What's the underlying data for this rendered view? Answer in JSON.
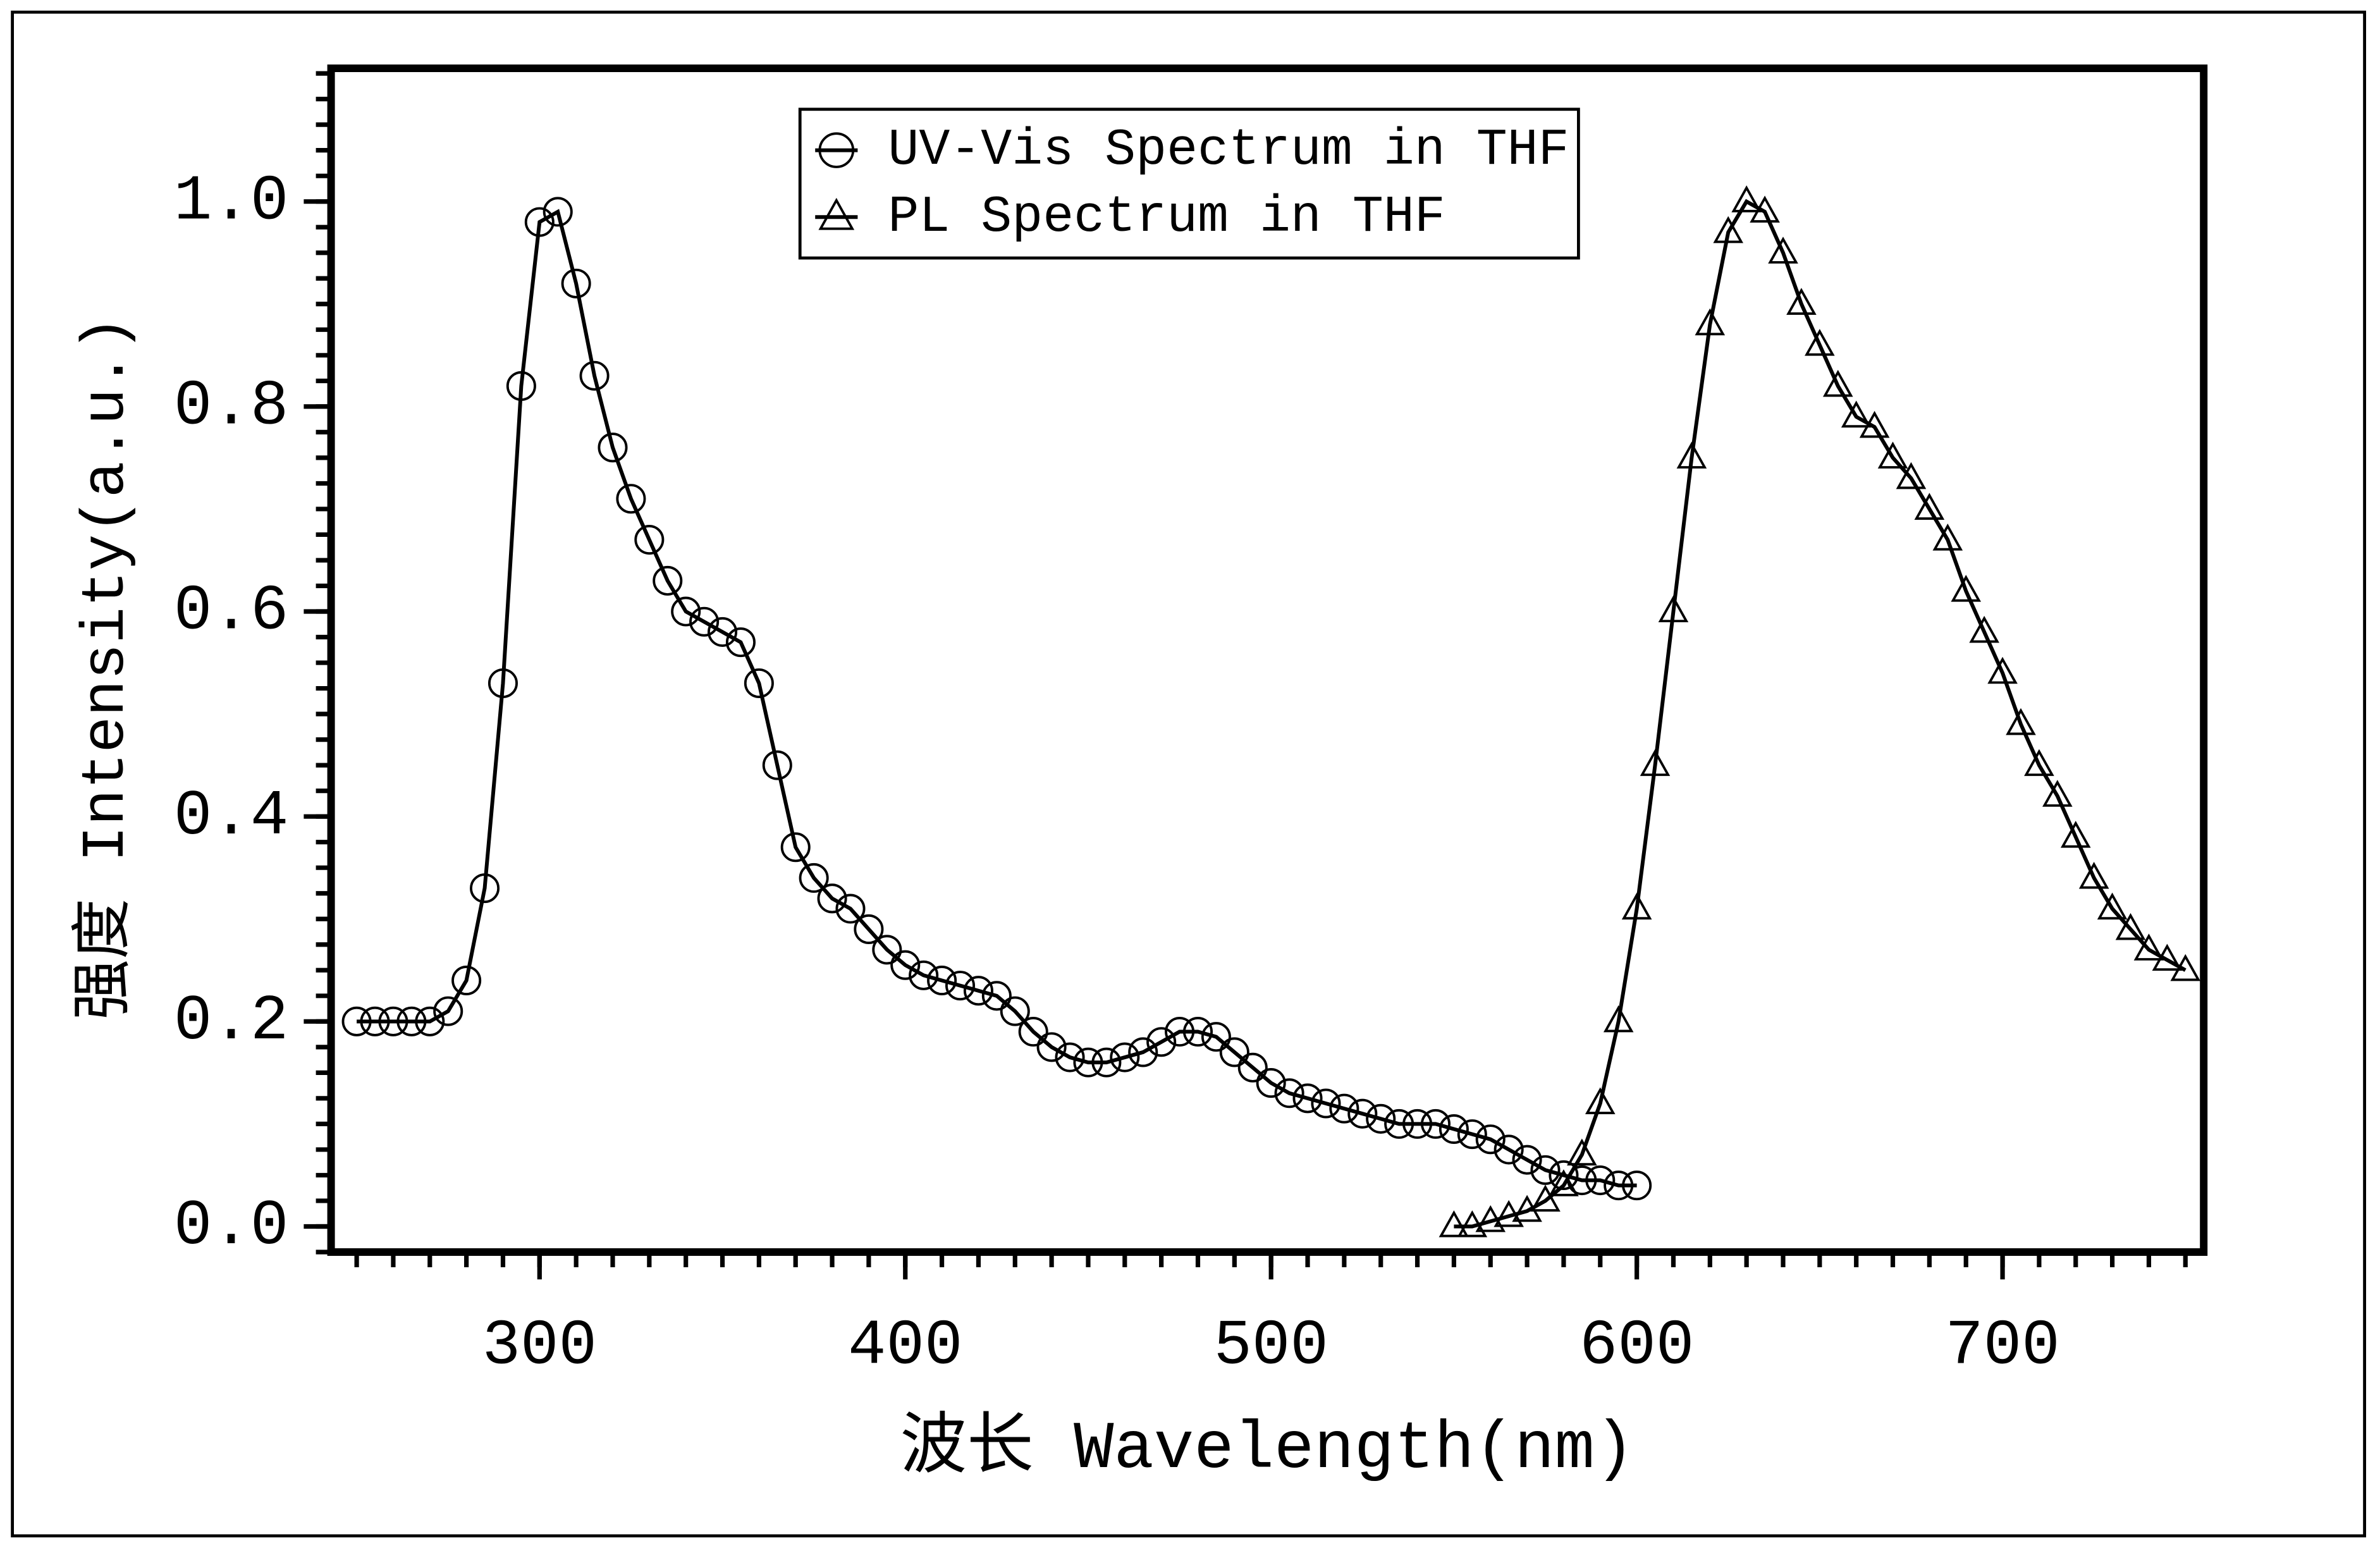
{
  "chart_data": {
    "type": "line",
    "xlabel": "波长 Wavelength(nm)",
    "ylabel": "强度 Intensity(a.u.)",
    "xlim": [
      243,
      755
    ],
    "xticks": [
      300,
      400,
      500,
      600,
      700
    ],
    "ylim": [
      -0.025,
      1.13
    ],
    "yticks": [
      {
        "value": 0,
        "label": "0.0"
      },
      0.2,
      0.4,
      0.6,
      0.8,
      {
        "value": 1,
        "label": "1.0"
      }
    ],
    "legend": "upper center",
    "series": [
      {
        "name": "UV-Vis Spectrum in THF",
        "color": "#000000",
        "marker": "circle",
        "x": [
          250,
          255,
          260,
          265,
          270,
          275,
          280,
          285,
          290,
          295,
          300,
          305,
          310,
          315,
          320,
          325,
          330,
          335,
          340,
          345,
          350,
          355,
          360,
          365,
          370,
          375,
          380,
          385,
          390,
          395,
          400,
          405,
          410,
          415,
          420,
          425,
          430,
          435,
          440,
          445,
          450,
          455,
          460,
          465,
          470,
          475,
          480,
          485,
          490,
          495,
          500,
          505,
          510,
          515,
          520,
          525,
          530,
          535,
          540,
          545,
          550,
          555,
          560,
          565,
          570,
          575,
          580,
          585,
          590,
          595,
          600
        ],
        "values": [
          0.2,
          0.2,
          0.2,
          0.2,
          0.2,
          0.21,
          0.24,
          0.33,
          0.53,
          0.82,
          0.98,
          0.99,
          0.92,
          0.83,
          0.76,
          0.71,
          0.67,
          0.63,
          0.6,
          0.59,
          0.58,
          0.57,
          0.53,
          0.45,
          0.37,
          0.34,
          0.32,
          0.31,
          0.29,
          0.27,
          0.255,
          0.245,
          0.24,
          0.235,
          0.23,
          0.225,
          0.21,
          0.19,
          0.175,
          0.165,
          0.16,
          0.16,
          0.165,
          0.17,
          0.18,
          0.19,
          0.19,
          0.185,
          0.17,
          0.155,
          0.14,
          0.13,
          0.125,
          0.12,
          0.115,
          0.11,
          0.105,
          0.1,
          0.1,
          0.1,
          0.095,
          0.09,
          0.085,
          0.075,
          0.065,
          0.055,
          0.05,
          0.045,
          0.045,
          0.04,
          0.04
        ]
      },
      {
        "name": "PL Spectrum in THF",
        "color": "#000000",
        "marker": "triangle",
        "x": [
          550,
          555,
          560,
          565,
          570,
          575,
          580,
          585,
          590,
          595,
          600,
          605,
          610,
          615,
          620,
          625,
          630,
          635,
          640,
          645,
          650,
          655,
          660,
          665,
          670,
          675,
          680,
          685,
          690,
          695,
          700,
          705,
          710,
          715,
          720,
          725,
          730,
          735,
          740,
          745,
          750
        ],
        "values": [
          0,
          0,
          0.005,
          0.01,
          0.015,
          0.025,
          0.04,
          0.07,
          0.12,
          0.2,
          0.31,
          0.45,
          0.6,
          0.75,
          0.88,
          0.97,
          1,
          0.99,
          0.95,
          0.9,
          0.86,
          0.82,
          0.79,
          0.78,
          0.75,
          0.73,
          0.7,
          0.67,
          0.62,
          0.58,
          0.54,
          0.49,
          0.45,
          0.42,
          0.38,
          0.34,
          0.31,
          0.29,
          0.27,
          0.26,
          0.25
        ]
      }
    ]
  }
}
